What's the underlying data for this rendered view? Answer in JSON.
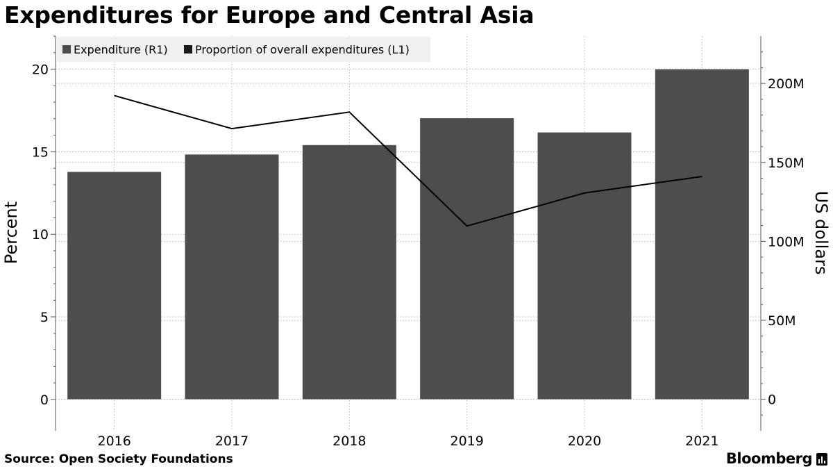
{
  "chart_data": {
    "type": "bar+line",
    "title": "Expenditures for Europe and Central Asia",
    "categories": [
      "2016",
      "2017",
      "2018",
      "2019",
      "2020",
      "2021"
    ],
    "series": [
      {
        "name": "Expenditure (R1)",
        "type": "bar",
        "axis": "right",
        "values": [
          144000000,
          155000000,
          161000000,
          178000000,
          169000000,
          209000000
        ]
      },
      {
        "name": "Proportion of overall expenditures (L1)",
        "type": "line",
        "axis": "left",
        "values": [
          18.4,
          16.4,
          17.4,
          10.5,
          12.5,
          13.5
        ]
      }
    ],
    "left_axis": {
      "label": "Percent",
      "range": [
        -1.9,
        22
      ],
      "ticks": [
        0,
        5,
        10,
        15,
        20
      ]
    },
    "right_axis": {
      "label": "US dollars",
      "range": [
        -20000000,
        230000000
      ],
      "ticks": [
        0,
        50000000,
        100000000,
        150000000,
        200000000
      ],
      "tick_labels": [
        "0",
        "50M",
        "100M",
        "150M",
        "200M"
      ]
    },
    "legend_position": "top-left",
    "grid": true,
    "colors": {
      "bar": "#4d4d4d",
      "line": "#000000",
      "grid": "#c8c8c8",
      "legend_bg": "#f0f0f0"
    }
  },
  "footer": {
    "source": "Source: Open Society Foundations",
    "brand": "Bloomberg"
  }
}
